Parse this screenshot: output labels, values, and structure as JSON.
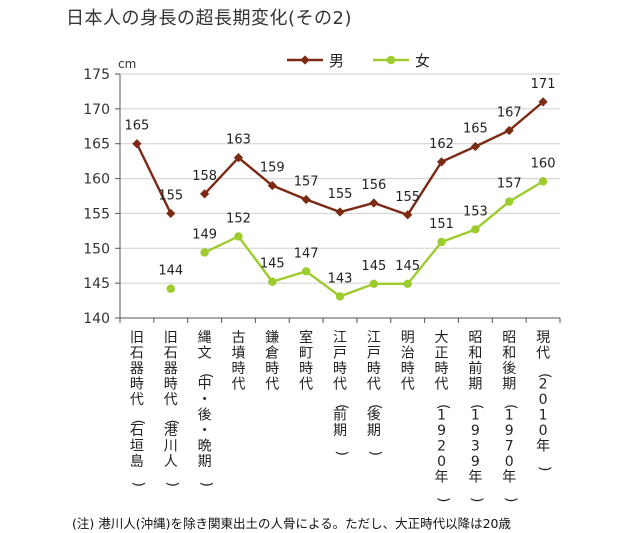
{
  "title": "日本人の身長の超長期変化(その2)",
  "note": "(注) 港川人(沖縄)を除き関東出土の人骨による。ただし、大正時代以降は20歳",
  "chart_data": {
    "type": "line",
    "title": "日本人の身長の超長期変化(その2)",
    "xlabel": "",
    "ylabel": "",
    "unit": "cm",
    "ylim": [
      140,
      175
    ],
    "yticks": [
      140,
      145,
      150,
      155,
      160,
      165,
      170,
      175
    ],
    "grid": true,
    "legend": "top",
    "categories": [
      "旧石器時代(石垣島)",
      "旧石器時代(港川人)",
      "縄文(中・後・晩期)",
      "古墳時代",
      "鎌倉時代",
      "室町時代",
      "江戸時代(前期)",
      "江戸時代(後期)",
      "明治時代",
      "大正時代(1920年)",
      "昭和前期(1939年)",
      "昭和後期(1970年)",
      "現代(2010年)"
    ],
    "series": [
      {
        "name": "男",
        "color": "#7b2a14",
        "marker": "diamond",
        "values": [
          165,
          155,
          158,
          163,
          159,
          157,
          155,
          156,
          155,
          162,
          165,
          167,
          171
        ],
        "labels": [
          "165",
          "155",
          "158",
          "163",
          "159",
          "157",
          "155",
          "156",
          "155",
          "162",
          "165",
          "167",
          "171"
        ],
        "plot_values": [
          165,
          155,
          157.8,
          163,
          159,
          157,
          155.2,
          156.5,
          154.8,
          162.4,
          164.6,
          166.9,
          171
        ],
        "connected": [
          [
            0,
            1
          ],
          [
            2,
            12
          ]
        ]
      },
      {
        "name": "女",
        "color": "#9ccc2e",
        "marker": "circle",
        "values": [
          null,
          144,
          149,
          152,
          145,
          147,
          143,
          145,
          145,
          151,
          153,
          157,
          160
        ],
        "labels": [
          null,
          "144",
          "149",
          "152",
          "145",
          "147",
          "143",
          "145",
          "145",
          "151",
          "153",
          "157",
          "160"
        ],
        "plot_values": [
          null,
          144.2,
          149.4,
          151.7,
          145.2,
          146.7,
          143.1,
          144.9,
          144.9,
          150.9,
          152.7,
          156.7,
          159.6
        ],
        "connected": [
          [
            2,
            12
          ]
        ]
      }
    ]
  }
}
